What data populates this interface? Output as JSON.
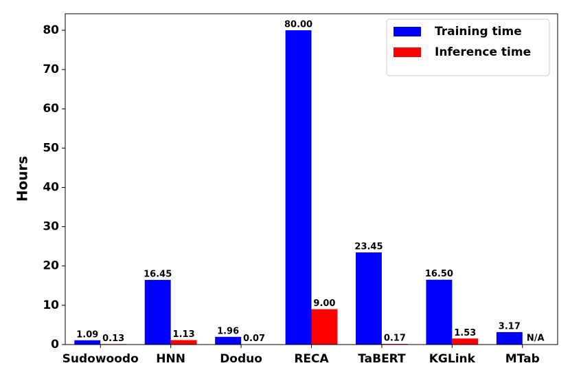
{
  "chart_data": {
    "type": "bar",
    "categories": [
      "Sudowoodo",
      "HNN",
      "Doduo",
      "RECA",
      "TaBERT",
      "KGLink",
      "MTab"
    ],
    "series": [
      {
        "name": "Training time",
        "color": "#0000ff",
        "values": [
          1.09,
          16.45,
          1.96,
          80.0,
          23.45,
          16.5,
          3.17
        ],
        "value_labels": [
          "1.09",
          "16.45",
          "1.96",
          "80.00",
          "23.45",
          "16.50",
          "3.17"
        ]
      },
      {
        "name": "Inference time",
        "color": "#ff0000",
        "values": [
          0.13,
          1.13,
          0.07,
          9.0,
          0.17,
          1.53,
          null
        ],
        "value_labels": [
          "0.13",
          "1.13",
          "0.07",
          "9.00",
          "0.17",
          "1.53",
          "N/A"
        ]
      }
    ],
    "ylabel": "Hours",
    "ylim": [
      0,
      84.2
    ],
    "yticks": [
      0,
      10,
      20,
      30,
      40,
      50,
      60,
      70,
      80
    ],
    "legend": "upper right"
  }
}
